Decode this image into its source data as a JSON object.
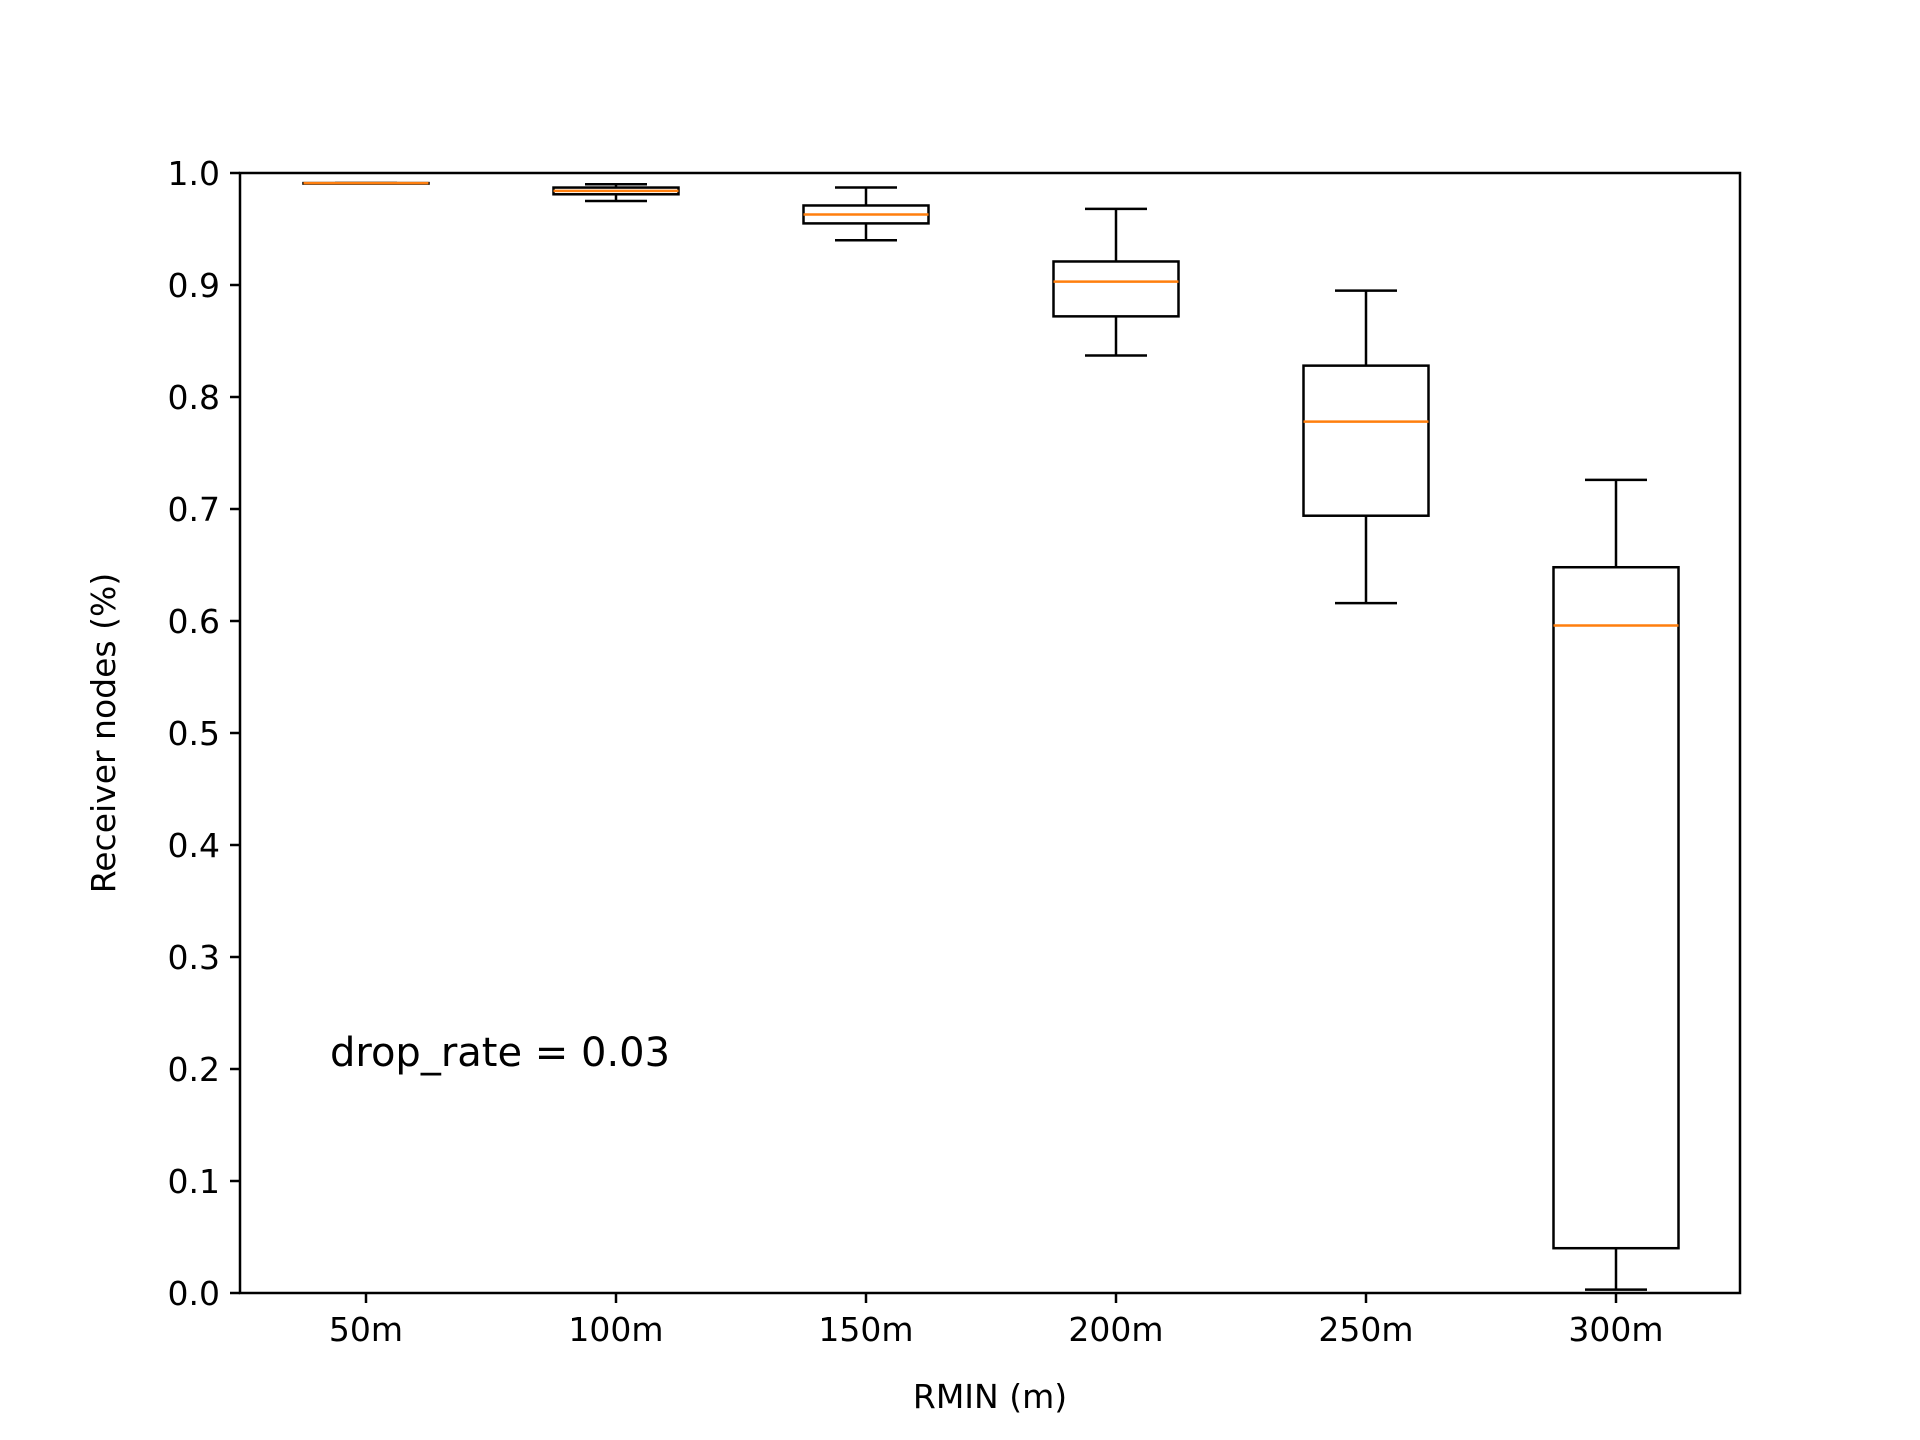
{
  "chart_data": {
    "type": "boxplot",
    "title": "",
    "xlabel": "RMIN (m)",
    "ylabel": "Receiver nodes (%)",
    "ylim": [
      0.0,
      1.0
    ],
    "yticks": [
      "0.0",
      "0.1",
      "0.2",
      "0.3",
      "0.4",
      "0.5",
      "0.6",
      "0.7",
      "0.8",
      "0.9",
      "1.0"
    ],
    "categories": [
      "50m",
      "100m",
      "150m",
      "200m",
      "250m",
      "300m"
    ],
    "boxes": [
      {
        "category": "50m",
        "whisker_low": 0.991,
        "q1": 0.991,
        "median": 0.991,
        "q3": 0.991,
        "whisker_high": 0.991
      },
      {
        "category": "100m",
        "whisker_low": 0.975,
        "q1": 0.981,
        "median": 0.984,
        "q3": 0.987,
        "whisker_high": 0.99
      },
      {
        "category": "150m",
        "whisker_low": 0.94,
        "q1": 0.955,
        "median": 0.963,
        "q3": 0.971,
        "whisker_high": 0.987
      },
      {
        "category": "200m",
        "whisker_low": 0.837,
        "q1": 0.872,
        "median": 0.903,
        "q3": 0.921,
        "whisker_high": 0.968
      },
      {
        "category": "250m",
        "whisker_low": 0.616,
        "q1": 0.694,
        "median": 0.778,
        "q3": 0.828,
        "whisker_high": 0.895
      },
      {
        "category": "300m",
        "whisker_low": 0.003,
        "q1": 0.04,
        "median": 0.596,
        "q3": 0.648,
        "whisker_high": 0.726
      }
    ],
    "annotation": "drop_rate = 0.03",
    "grid": false,
    "legend": "none",
    "colors": {
      "box": "#000000",
      "median": "#ff7f0e"
    }
  }
}
